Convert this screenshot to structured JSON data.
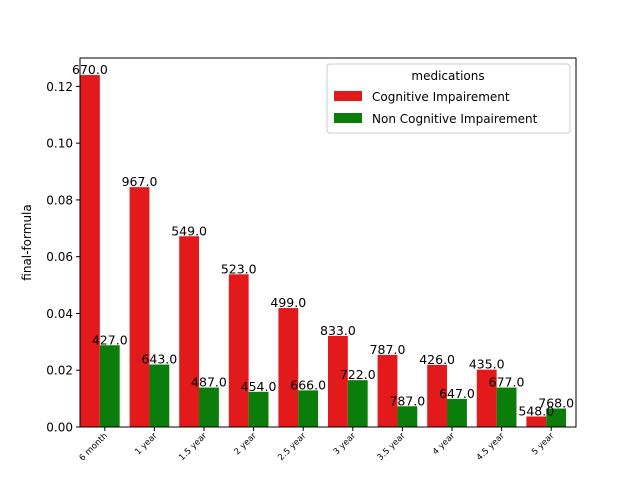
{
  "chart_data": {
    "type": "bar",
    "title": "",
    "xlabel": "",
    "ylabel": "final-formula",
    "ylim": [
      0,
      0.13
    ],
    "yticks": [
      "0.00",
      "0.02",
      "0.04",
      "0.06",
      "0.08",
      "0.10",
      "0.12"
    ],
    "ytick_values": [
      0,
      0.02,
      0.04,
      0.06,
      0.08,
      0.1,
      0.12
    ],
    "categories": [
      "6 month",
      "1 year",
      "1.5 year",
      "2 year",
      "2.5 year",
      "3 year",
      "3.5 year",
      "4 year",
      "4.5 year",
      "5 year"
    ],
    "legend": {
      "title": "medications",
      "position": "top-right"
    },
    "grid": false,
    "series": [
      {
        "name": "Cognitive Impairement",
        "color": "#e31a1c",
        "values": [
          0.124,
          0.0845,
          0.0672,
          0.0538,
          0.0419,
          0.0321,
          0.0254,
          0.0219,
          0.0202,
          0.0037
        ],
        "labels": [
          "670.0",
          "967.0",
          "549.0",
          "523.0",
          "499.0",
          "833.0",
          "787.0",
          "426.0",
          "435.0",
          "548.0"
        ]
      },
      {
        "name": "Non Cognitive Impairement",
        "color": "#0a7d0a",
        "values": [
          0.0288,
          0.022,
          0.0139,
          0.0124,
          0.0129,
          0.0165,
          0.0073,
          0.0099,
          0.0139,
          0.0065
        ],
        "labels": [
          "427.0",
          "643.0",
          "487.0",
          "454.0",
          "666.0",
          "722.0",
          "787.0",
          "647.0",
          "677.0",
          "768.0"
        ]
      }
    ]
  }
}
